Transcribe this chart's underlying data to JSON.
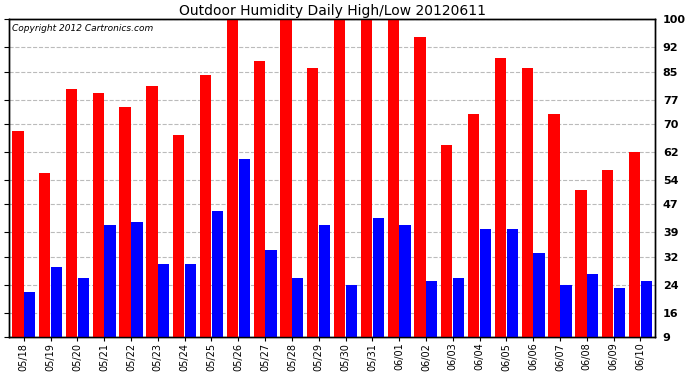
{
  "title": "Outdoor Humidity Daily High/Low 20120611",
  "copyright": "Copyright 2012 Cartronics.com",
  "dates": [
    "05/18",
    "05/19",
    "05/20",
    "05/21",
    "05/22",
    "05/23",
    "05/24",
    "05/25",
    "05/26",
    "05/27",
    "05/28",
    "05/29",
    "05/30",
    "05/31",
    "06/01",
    "06/02",
    "06/03",
    "06/04",
    "06/05",
    "06/06",
    "06/07",
    "06/08",
    "06/09",
    "06/10"
  ],
  "highs": [
    68,
    56,
    80,
    79,
    75,
    81,
    67,
    84,
    100,
    88,
    100,
    86,
    100,
    100,
    100,
    95,
    64,
    73,
    89,
    86,
    73,
    51,
    57,
    62
  ],
  "lows": [
    22,
    29,
    26,
    41,
    42,
    30,
    30,
    45,
    60,
    34,
    26,
    41,
    24,
    43,
    41,
    25,
    26,
    40,
    40,
    33,
    24,
    27,
    23,
    25
  ],
  "high_color": "#ff0000",
  "low_color": "#0000ff",
  "bg_color": "#ffffff",
  "grid_color": "#bbbbbb",
  "ylim_min": 9,
  "ylim_max": 100,
  "yticks": [
    9,
    16,
    24,
    32,
    39,
    47,
    54,
    62,
    70,
    77,
    85,
    92,
    100
  ],
  "figwidth": 6.9,
  "figheight": 3.75,
  "dpi": 100
}
